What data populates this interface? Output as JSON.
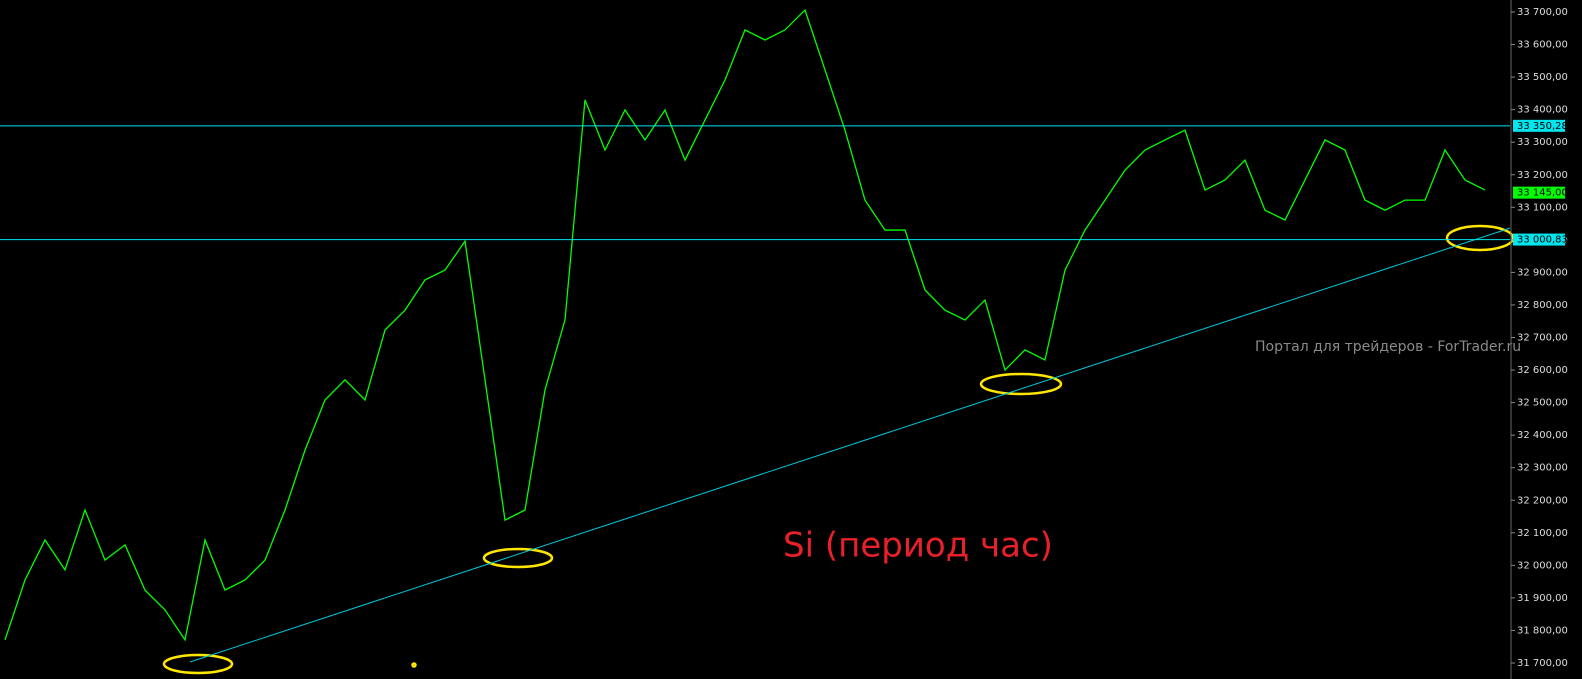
{
  "chart_data": {
    "type": "line",
    "annotation": "Si (период час)",
    "watermark": "Портал для трейдеров - ForTrader.ru",
    "ylim": [
      31700,
      33700
    ],
    "yticks": [
      {
        "value": 31700,
        "label": "31 700,00"
      },
      {
        "value": 31800,
        "label": "31 800,00"
      },
      {
        "value": 31900,
        "label": "31 900,00"
      },
      {
        "value": 32000,
        "label": "32 000,00"
      },
      {
        "value": 32100,
        "label": "32 100,00"
      },
      {
        "value": 32200,
        "label": "32 200,00"
      },
      {
        "value": 32300,
        "label": "32 300,00"
      },
      {
        "value": 32400,
        "label": "32 400,00"
      },
      {
        "value": 32500,
        "label": "32 500,00"
      },
      {
        "value": 32600,
        "label": "32 600,00"
      },
      {
        "value": 32700,
        "label": "32 700,00"
      },
      {
        "value": 32800,
        "label": "32 800,00"
      },
      {
        "value": 32900,
        "label": "32 900,00"
      },
      {
        "value": 33000,
        "label": "33 000,00"
      },
      {
        "value": 33100,
        "label": "33 100,00"
      },
      {
        "value": 33200,
        "label": "33 200,00"
      },
      {
        "value": 33300,
        "label": "33 300,00"
      },
      {
        "value": 33400,
        "label": "33 400,00"
      },
      {
        "value": 33500,
        "label": "33 500,00"
      },
      {
        "value": 33600,
        "label": "33 600,00"
      },
      {
        "value": 33700,
        "label": "33 700,00"
      }
    ],
    "series": [
      {
        "color": "#00ff00",
        "values": [
          31771,
          31955,
          32078,
          31986,
          32170,
          32016,
          32063,
          31924,
          31863,
          31771,
          32078,
          31924,
          31955,
          32016,
          32170,
          32354,
          32508,
          32570,
          32508,
          32723,
          32784,
          32877,
          32907,
          32996,
          32570,
          32139,
          32170,
          32539,
          32754,
          33430,
          33276,
          33399,
          33307,
          33399,
          33245,
          33368,
          33491,
          33645,
          33614,
          33645,
          33706,
          33522,
          33337,
          33122,
          33030,
          33030,
          32846,
          32784,
          32754,
          32815,
          32600,
          32662,
          32631,
          32907,
          33030,
          33122,
          33214,
          33276,
          33307,
          33337,
          33153,
          33184,
          33245,
          33091,
          33061,
          33184,
          33307,
          33276,
          33122,
          33091,
          33122,
          33122,
          33276,
          33184,
          33153
        ]
      }
    ],
    "trendline": {
      "color": "#00c8d8",
      "x": [
        9.25,
        75.25
      ],
      "values": [
        31703,
        33036
      ]
    },
    "levels": [
      {
        "value": 33350.28,
        "label": "33 350,28",
        "color": "#00e5ee"
      },
      {
        "value": 33000.83,
        "label": "33 000,83",
        "color": "#00e5ee"
      }
    ],
    "current_price": {
      "value": 33145,
      "label": "33 145,00",
      "color": "#00ff00"
    }
  }
}
